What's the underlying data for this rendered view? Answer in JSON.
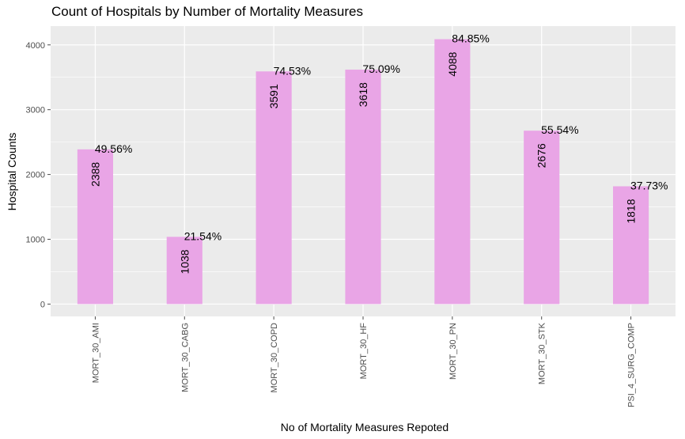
{
  "chart_data": {
    "type": "bar",
    "title": "Count of Hospitals by Number of Mortality Measures",
    "xlabel": "No of Mortality Measures Repoted",
    "ylabel": "Hospital Counts",
    "categories": [
      "MORT_30_AMI",
      "MORT_30_CABG",
      "MORT_30_COPD",
      "MORT_30_HF",
      "MORT_30_PN",
      "MORT_30_STK",
      "PSI_4_SURG_COMP"
    ],
    "values": [
      2388,
      1038,
      3591,
      3618,
      4088,
      2676,
      1818
    ],
    "percent_labels": [
      "49.56%",
      "21.54%",
      "74.53%",
      "75.09%",
      "84.85%",
      "55.54%",
      "37.73%"
    ],
    "y_ticks": [
      0,
      1000,
      2000,
      3000,
      4000
    ],
    "ylim": [
      -190,
      4290
    ],
    "grid": true,
    "legend": "none",
    "colors": {
      "bar": "#E9A5E6",
      "panel": "#EBEBEB",
      "grid": "#FFFFFF"
    }
  }
}
